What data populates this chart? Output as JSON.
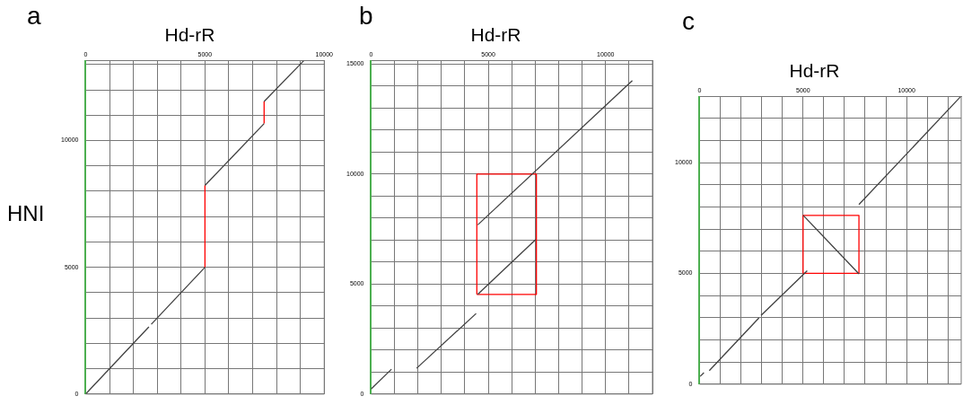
{
  "chart_data": [
    {
      "type": "line",
      "title": "Hd-rR",
      "ylabel": "HNI",
      "annotations": [
        "a"
      ],
      "xlim": [
        0,
        10000
      ],
      "ylim": [
        0,
        13150
      ],
      "xticks": [
        0,
        {
          "value": 1000,
          "label": null
        },
        {
          "value": 2000,
          "label": null
        },
        {
          "value": 3000,
          "label": null
        },
        {
          "value": 4000,
          "label": null
        },
        5000,
        {
          "value": 6000,
          "label": null
        },
        {
          "value": 7000,
          "label": null
        },
        {
          "value": 8000,
          "label": null
        },
        {
          "value": 9000,
          "label": null
        },
        10000
      ],
      "yticks": [
        0,
        {
          "value": 1000,
          "label": null
        },
        {
          "value": 2000,
          "label": null
        },
        {
          "value": 3000,
          "label": null
        },
        {
          "value": 4000,
          "label": null
        },
        5000,
        {
          "value": 6000,
          "label": null
        },
        {
          "value": 7000,
          "label": null
        },
        {
          "value": 8000,
          "label": null
        },
        {
          "value": 9000,
          "label": null
        },
        10000,
        {
          "value": 11000,
          "label": null
        },
        {
          "value": 12000,
          "label": null
        },
        {
          "value": 13000,
          "label": null
        }
      ],
      "grid": true,
      "marker": "none",
      "line_style": "solid",
      "series": [
        {
          "color": "#404040",
          "x": [
            0,
            2650
          ],
          "values": [
            0,
            2650
          ]
        },
        {
          "color": "#404040",
          "x": [
            2750,
            5000
          ],
          "values": [
            2750,
            5000
          ]
        },
        {
          "color": "#ff0000",
          "x": [
            5000,
            5000
          ],
          "values": [
            5000,
            8230
          ]
        },
        {
          "color": "#404040",
          "x": [
            5000,
            7480
          ],
          "values": [
            8230,
            10670
          ]
        },
        {
          "color": "#ff0000",
          "x": [
            7480,
            7480
          ],
          "values": [
            10670,
            11540
          ]
        },
        {
          "color": "#404040",
          "x": [
            7480,
            9140
          ],
          "values": [
            11540,
            13150
          ]
        }
      ]
    },
    {
      "type": "line",
      "title": "Hd-rR",
      "annotations": [
        "b"
      ],
      "xlim": [
        0,
        12000
      ],
      "ylim": [
        0,
        15150
      ],
      "xticks": [
        0,
        {
          "value": 1000,
          "label": null
        },
        {
          "value": 2000,
          "label": null
        },
        {
          "value": 3000,
          "label": null
        },
        {
          "value": 4000,
          "label": null
        },
        5000,
        {
          "value": 6000,
          "label": null
        },
        {
          "value": 7000,
          "label": null
        },
        {
          "value": 8000,
          "label": null
        },
        {
          "value": 9000,
          "label": null
        },
        10000,
        {
          "value": 11000,
          "label": null
        },
        {
          "value": 12000,
          "label": null
        }
      ],
      "yticks": [
        0,
        {
          "value": 1000,
          "label": null
        },
        {
          "value": 2000,
          "label": null
        },
        {
          "value": 3000,
          "label": null
        },
        {
          "value": 4000,
          "label": null
        },
        5000,
        {
          "value": 6000,
          "label": null
        },
        {
          "value": 7000,
          "label": null
        },
        {
          "value": 8000,
          "label": null
        },
        {
          "value": 9000,
          "label": null
        },
        10000,
        {
          "value": 11000,
          "label": null
        },
        {
          "value": 12000,
          "label": null
        },
        {
          "value": 13000,
          "label": null
        },
        {
          "value": 14000,
          "label": null
        },
        15000
      ],
      "grid": true,
      "marker": "none",
      "line_style": "solid",
      "series": [
        {
          "color": "#404040",
          "x": [
            0,
            870
          ],
          "values": [
            230,
            1130
          ]
        },
        {
          "color": "#404040",
          "x": [
            1940,
            4480
          ],
          "values": [
            1170,
            3660
          ]
        },
        {
          "color": "#404040",
          "x": [
            4550,
            7020
          ],
          "values": [
            4530,
            7020
          ]
        },
        {
          "color": "#404040",
          "x": [
            4550,
            11140
          ],
          "values": [
            7690,
            14250
          ]
        },
        {
          "color": "#ff0000",
          "x": [
            4510,
            4510,
            7050,
            7050
          ],
          "values": [
            4530,
            10000,
            10000,
            4530
          ]
        },
        {
          "color": "#ff0000",
          "x": [
            4510,
            7050
          ],
          "values": [
            4530,
            4530
          ]
        }
      ]
    },
    {
      "type": "line",
      "title": "Hd-rR",
      "annotations": [
        "c"
      ],
      "xlim": [
        0,
        12640
      ],
      "ylim": [
        0,
        12980
      ],
      "xticks": [
        0,
        {
          "value": 1000,
          "label": null
        },
        {
          "value": 2000,
          "label": null
        },
        {
          "value": 3000,
          "label": null
        },
        {
          "value": 4000,
          "label": null
        },
        5000,
        {
          "value": 6000,
          "label": null
        },
        {
          "value": 7000,
          "label": null
        },
        {
          "value": 8000,
          "label": null
        },
        {
          "value": 9000,
          "label": null
        },
        10000,
        {
          "value": 11000,
          "label": null
        },
        {
          "value": 12000,
          "label": null
        }
      ],
      "yticks": [
        0,
        {
          "value": 1000,
          "label": null
        },
        {
          "value": 2000,
          "label": null
        },
        {
          "value": 3000,
          "label": null
        },
        {
          "value": 4000,
          "label": null
        },
        5000,
        {
          "value": 6000,
          "label": null
        },
        {
          "value": 7000,
          "label": null
        },
        {
          "value": 8000,
          "label": null
        },
        {
          "value": 9000,
          "label": null
        },
        10000,
        {
          "value": 11000,
          "label": null
        },
        {
          "value": 12000,
          "label": null
        }
      ],
      "grid": true,
      "marker": "none",
      "line_style": "solid",
      "series": [
        {
          "color": "#404040",
          "x": [
            30,
            210
          ],
          "values": [
            350,
            520
          ]
        },
        {
          "color": "#404040",
          "x": [
            470,
            2870
          ],
          "values": [
            610,
            2990
          ]
        },
        {
          "color": "#404040",
          "x": [
            2970,
            5200
          ],
          "values": [
            3100,
            5120
          ]
        },
        {
          "color": "#404040",
          "x": [
            5010,
            7700
          ],
          "values": [
            7620,
            4980
          ]
        },
        {
          "color": "#404040",
          "x": [
            7700,
            12610
          ],
          "values": [
            8110,
            12980
          ]
        },
        {
          "color": "#ff0000",
          "x": [
            5000,
            5000,
            7700,
            7700
          ],
          "values": [
            5000,
            7620,
            7620,
            5000
          ]
        },
        {
          "color": "#ff0000",
          "x": [
            5000,
            7700
          ],
          "values": [
            5000,
            5000
          ]
        }
      ]
    }
  ]
}
